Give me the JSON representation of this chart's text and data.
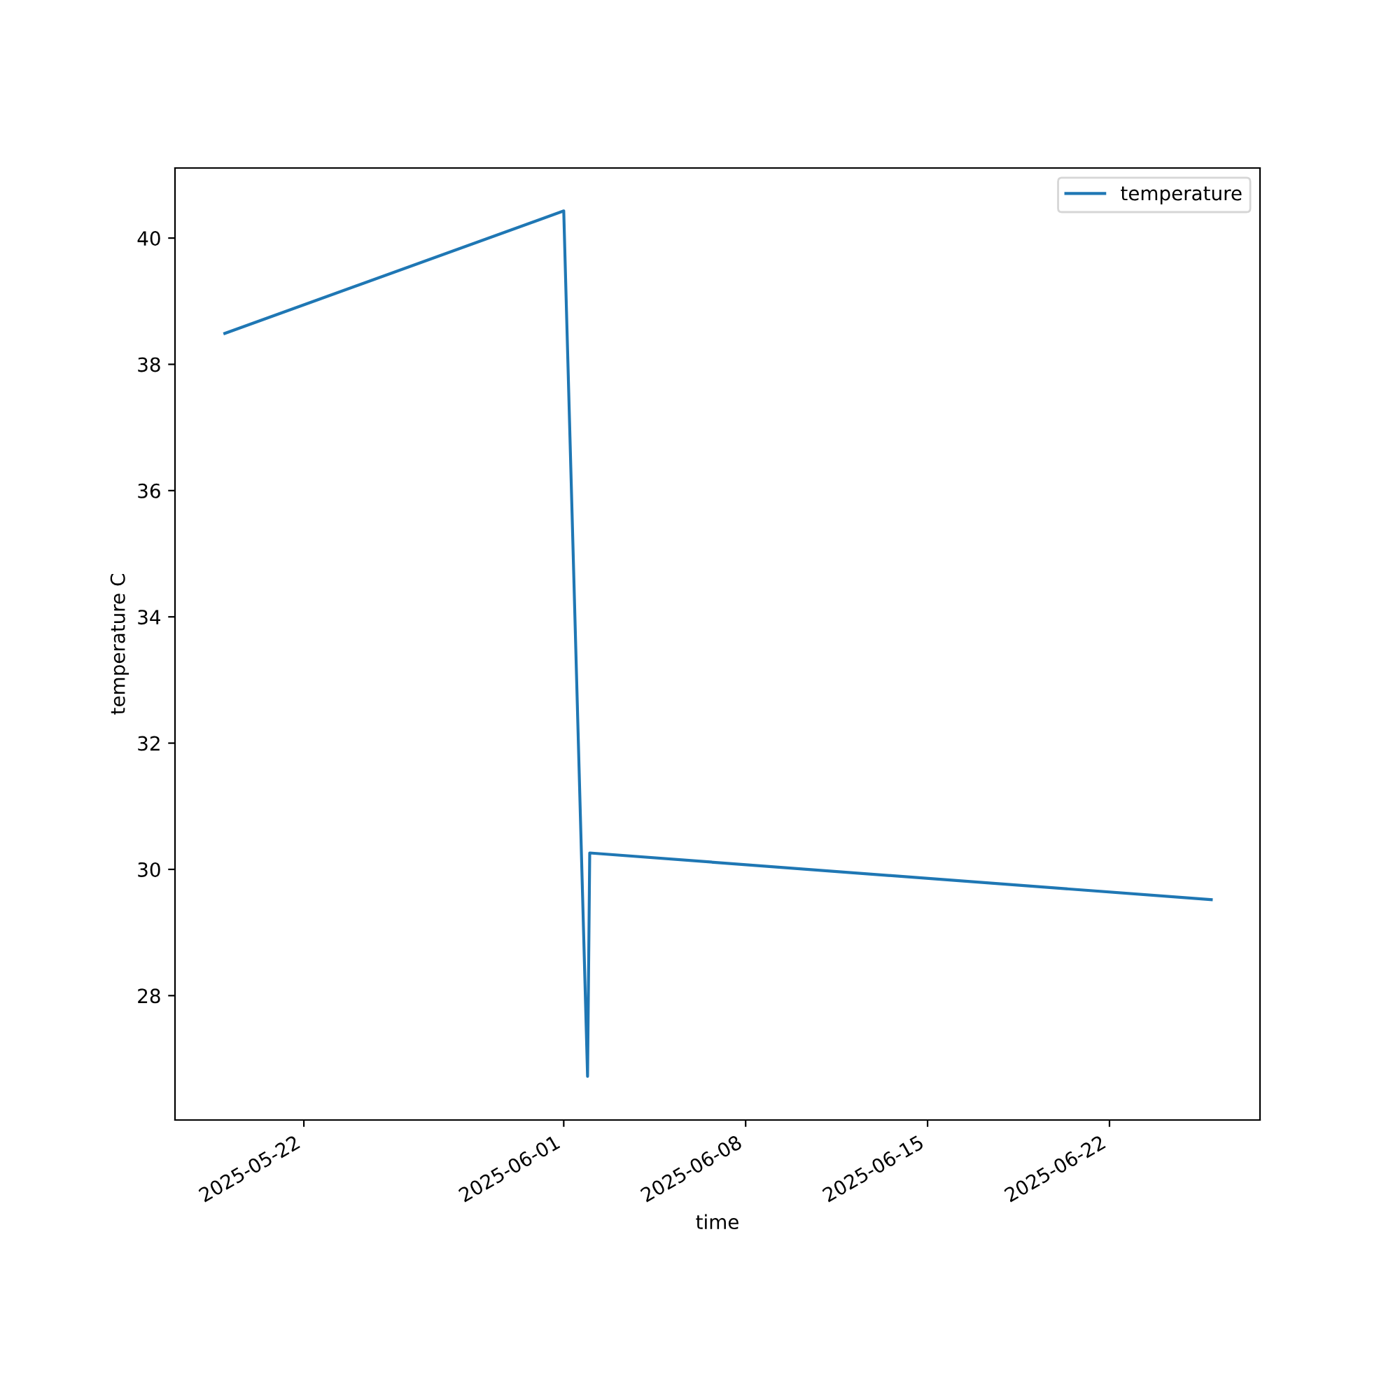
{
  "chart_data": {
    "type": "line",
    "xlabel": "time",
    "ylabel": "temperature C",
    "series": [
      {
        "name": "temperature",
        "color": "#1f77b4",
        "x": [
          "2025-05-18T23:00",
          "2025-06-01T00:00",
          "2025-06-01T22:00",
          "2025-06-02T00:00",
          "2025-06-25T22:00"
        ],
        "values": [
          38.49,
          40.43,
          26.72,
          30.26,
          29.52
        ]
      }
    ],
    "xlim": [
      "2025-05-17T01:00",
      "2025-06-27T19:00"
    ],
    "xticks": [
      {
        "value": "2025-05-22",
        "label": "2025-05-22"
      },
      {
        "value": "2025-06-01",
        "label": "2025-06-01"
      },
      {
        "value": "2025-06-08",
        "label": "2025-06-08"
      },
      {
        "value": "2025-06-15",
        "label": "2025-06-15"
      },
      {
        "value": "2025-06-22",
        "label": "2025-06-22"
      }
    ],
    "ylim": [
      26.03,
      41.11
    ],
    "yticks": [
      28,
      30,
      32,
      34,
      36,
      38,
      40
    ],
    "legend": "top right",
    "grid": false,
    "marker": "none",
    "line_style": "solid"
  }
}
